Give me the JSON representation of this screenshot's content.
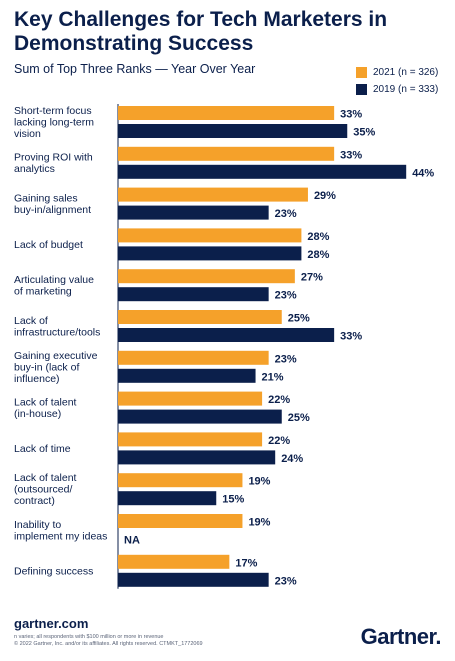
{
  "header": {
    "title": "Key Challenges for Tech Marketers in Demonstrating Success",
    "subtitle": "Sum of Top Three Ranks — Year Over Year"
  },
  "footer": {
    "site": "gartner.com",
    "note_line1": "n varies; all respondents with $100 million or more in revenue",
    "note_line2": "© 2022 Gartner, Inc. and/or its affiliates. All rights reserved. CTMKT_1772069",
    "brand": "Gartner."
  },
  "colors": {
    "s2021": "#f5a12a",
    "s2019": "#0b1f4b",
    "axis": "#0b1f4b",
    "text": "#0b1f4b"
  },
  "chart_data": {
    "type": "bar",
    "orientation": "horizontal",
    "title": "Key Challenges for Tech Marketers in Demonstrating Success",
    "subtitle": "Sum of Top Three Ranks — Year Over Year",
    "categories": [
      "Short-term focus lacking long-term vision",
      "Proving ROI with analytics",
      "Gaining sales buy-in/alignment",
      "Lack of budget",
      "Articulating value of marketing",
      "Lack of infrastructure/tools",
      "Gaining executive buy-in (lack of influence)",
      "Lack of talent (in-house)",
      "Lack of time",
      "Lack of talent (outsourced/ contract)",
      "Inability to implement my ideas",
      "Defining success"
    ],
    "category_lines": [
      [
        "Short-term focus",
        "lacking long-term",
        "vision"
      ],
      [
        "Proving ROI with",
        "analytics"
      ],
      [
        "Gaining sales",
        "buy-in/alignment"
      ],
      [
        "Lack of budget"
      ],
      [
        "Articulating value",
        "of marketing"
      ],
      [
        "Lack of",
        "infrastructure/tools"
      ],
      [
        "Gaining executive",
        "buy-in (lack of",
        "influence)"
      ],
      [
        "Lack of talent",
        "(in-house)"
      ],
      [
        "Lack of time"
      ],
      [
        "Lack of talent",
        "(outsourced/",
        "contract)"
      ],
      [
        "Inability to",
        "implement my ideas"
      ],
      [
        "Defining success"
      ]
    ],
    "series": [
      {
        "name": "2021 (n = 326)",
        "values": [
          33,
          33,
          29,
          28,
          27,
          25,
          23,
          22,
          22,
          19,
          19,
          17
        ],
        "labels": [
          "33%",
          "33%",
          "29%",
          "28%",
          "27%",
          "25%",
          "23%",
          "22%",
          "22%",
          "19%",
          "19%",
          "17%"
        ]
      },
      {
        "name": "2019 (n = 333)",
        "values": [
          35,
          44,
          23,
          28,
          23,
          33,
          21,
          25,
          24,
          15,
          null,
          23
        ],
        "labels": [
          "35%",
          "44%",
          "23%",
          "28%",
          "23%",
          "33%",
          "21%",
          "25%",
          "24%",
          "15%",
          "NA",
          "23%"
        ]
      }
    ],
    "unit": "%",
    "legend_position": "top-right",
    "grid": false
  }
}
